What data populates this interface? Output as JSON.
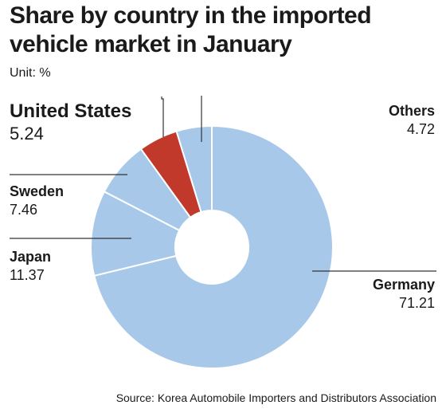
{
  "title": "Share by country in the imported vehicle market in January",
  "unit": "Unit: %",
  "source": "Source: Korea Automobile Importers and Distributors Association",
  "chart_data": {
    "type": "pie",
    "title": "Share by country in the imported vehicle market in January",
    "unit": "Unit: %",
    "donut": true,
    "start": "12 o'clock",
    "direction": "clockwise",
    "slices": [
      {
        "name": "Germany",
        "value": 71.21,
        "color": "#a8c8ea"
      },
      {
        "name": "Japan",
        "value": 11.37,
        "color": "#a8c8ea"
      },
      {
        "name": "Sweden",
        "value": 7.46,
        "color": "#a8c8ea"
      },
      {
        "name": "United States",
        "value": 5.24,
        "color": "#c0392b"
      },
      {
        "name": "Others",
        "value": 4.72,
        "color": "#a8c8ea"
      }
    ],
    "labels": {
      "us_value": "5.24",
      "sweden_value": "7.46",
      "japan_value": "11.37",
      "others_value": "4.72",
      "germany_value": "71.21"
    },
    "colors": {
      "base": "#a8c8ea",
      "highlight": "#c0392b",
      "separator": "#ffffff",
      "leader": "#333333"
    }
  }
}
